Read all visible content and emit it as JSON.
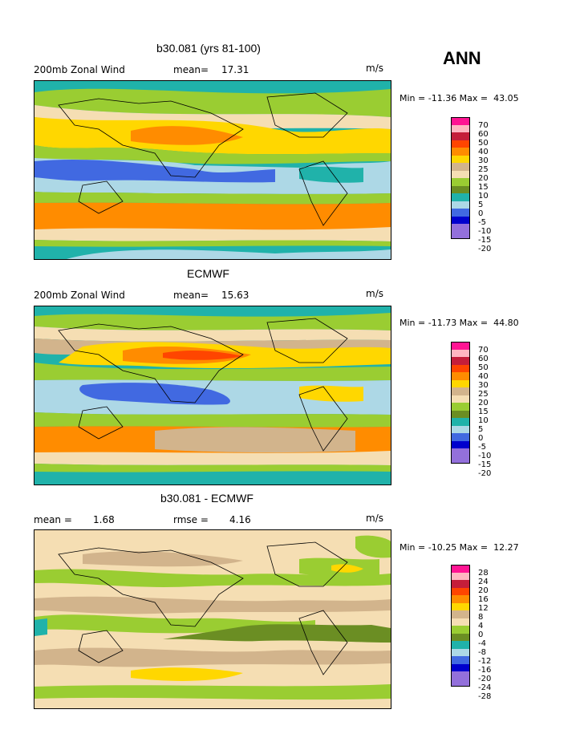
{
  "ann_label": "ANN",
  "panels": [
    {
      "title": "b30.081 (yrs 81-100)",
      "left_label": "200mb Zonal Wind",
      "stat_label": "mean=",
      "stat_value": "17.31",
      "units": "m/s",
      "min_text": "Min = -11.36 Max =  43.05",
      "legend": [
        "70",
        "60",
        "50",
        "40",
        "30",
        "25",
        "20",
        "15",
        "10",
        "5",
        "0",
        "-5",
        "-10",
        "-15",
        "-20"
      ]
    },
    {
      "title": "ECMWF",
      "left_label": "200mb Zonal Wind",
      "stat_label": "mean=",
      "stat_value": "15.63",
      "units": "m/s",
      "min_text": "Min = -11.73 Max =  44.80",
      "legend": [
        "70",
        "60",
        "50",
        "40",
        "30",
        "25",
        "20",
        "15",
        "10",
        "5",
        "0",
        "-5",
        "-10",
        "-15",
        "-20"
      ]
    },
    {
      "title": "b30.081 - ECMWF",
      "left_label": "mean =",
      "left_value": "1.68",
      "stat_label": "rmse =",
      "stat_value": "4.16",
      "units": "m/s",
      "min_text": "Min = -10.25 Max =  12.27",
      "legend": [
        "28",
        "24",
        "20",
        "16",
        "12",
        "8",
        "4",
        "0",
        "-4",
        "-8",
        "-12",
        "-16",
        "-20",
        "-24",
        "-28"
      ]
    }
  ],
  "colors": {
    "scale": [
      "#ff1493",
      "#ffb6c1",
      "#c41e3a",
      "#ff4500",
      "#ff8c00",
      "#ffd700",
      "#d2b48c",
      "#f5deb3",
      "#9acd32",
      "#6b8e23",
      "#20b2aa",
      "#add8e6",
      "#4169e1",
      "#0000cd",
      "#9370db"
    ]
  }
}
